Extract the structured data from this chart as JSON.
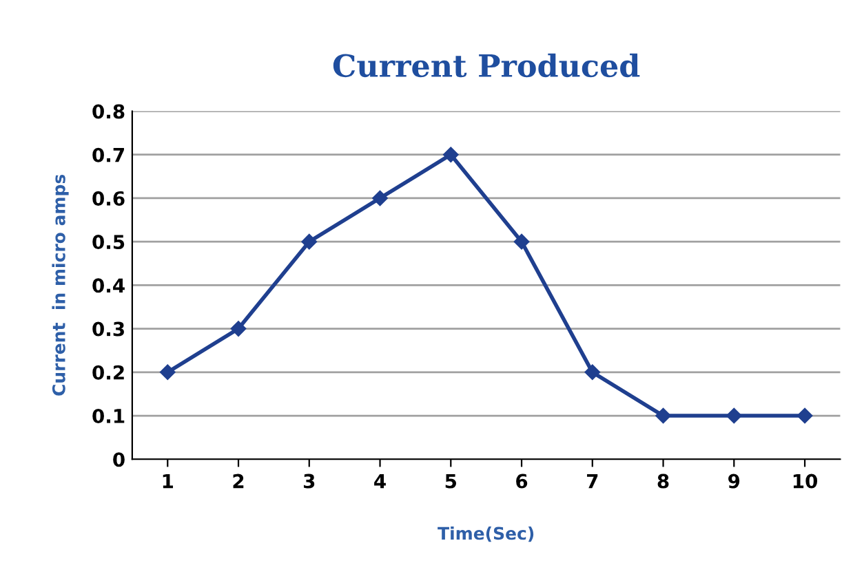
{
  "chart_data": {
    "type": "line",
    "title": "Current Produced",
    "xlabel": "Time(Sec)",
    "ylabel": "Current  in micro amps",
    "categories": [
      "1",
      "2",
      "3",
      "4",
      "5",
      "6",
      "7",
      "8",
      "9",
      "10"
    ],
    "series": [
      {
        "color": "#1f3f8f",
        "values": [
          0.2,
          0.3,
          0.5,
          0.6,
          0.7,
          0.5,
          0.2,
          0.1,
          0.1,
          0.1
        ]
      }
    ],
    "ylim": [
      0,
      0.8
    ],
    "yticks": [
      0,
      0.1,
      0.2,
      0.3,
      0.4,
      0.5,
      0.6,
      0.7,
      0.8
    ],
    "grid": "y",
    "legend": false,
    "marker": "diamond",
    "line_style": "solid"
  }
}
